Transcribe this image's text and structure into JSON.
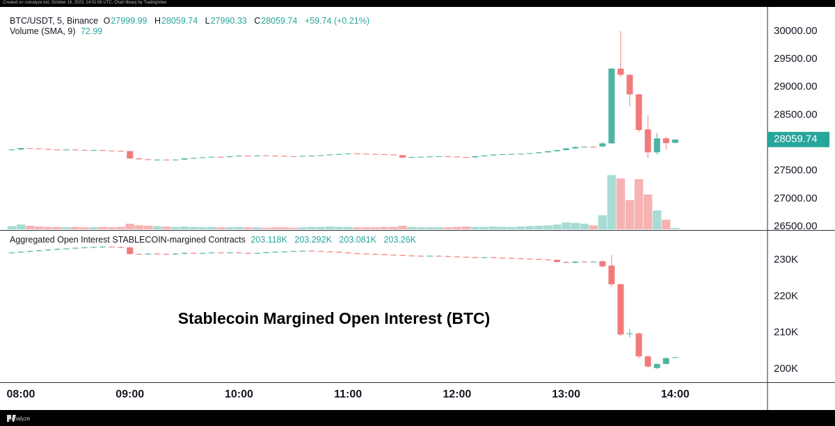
{
  "created_note": "Created on coinalyze.net, October 16, 2023, 14:01:06 UTC, Chart library by TradingView",
  "watermark": "coinalyze",
  "chart_data": [
    {
      "type": "candlestick",
      "title": "BTC/USDT, 5, Binance",
      "ohlc_letters": [
        "O",
        "H",
        "L",
        "C"
      ],
      "change": "+59.74 (+0.21%)",
      "up_color": "#4fb3a3",
      "down_color": "#f17b7b",
      "categories": [
        null,
        "08:00",
        null,
        null,
        null,
        null,
        null,
        null,
        null,
        null,
        null,
        null,
        null,
        "09:00",
        null,
        null,
        null,
        null,
        null,
        null,
        null,
        null,
        null,
        null,
        null,
        "10:00",
        null,
        null,
        null,
        null,
        null,
        null,
        null,
        null,
        null,
        null,
        null,
        "11:00",
        null,
        null,
        null,
        null,
        null,
        null,
        null,
        null,
        null,
        null,
        null,
        "12:00",
        null,
        null,
        null,
        null,
        null,
        null,
        null,
        null,
        null,
        null,
        null,
        "13:00",
        null,
        null,
        null,
        null,
        null,
        null,
        null,
        null,
        null,
        null,
        null,
        "14:00"
      ],
      "open": [
        27875,
        27880,
        27905,
        27900,
        27890,
        27880,
        27875,
        27880,
        27872,
        27868,
        27870,
        27862,
        27858,
        27852,
        27720,
        27705,
        27695,
        27700,
        27690,
        27700,
        27720,
        27730,
        27740,
        27750,
        27745,
        27760,
        27770,
        27765,
        27775,
        27770,
        27768,
        27760,
        27758,
        27765,
        27770,
        27778,
        27790,
        27800,
        27810,
        27805,
        27800,
        27795,
        27790,
        27780,
        27735,
        27745,
        27750,
        27755,
        27760,
        27755,
        27745,
        27740,
        27760,
        27775,
        27790,
        27795,
        27800,
        27805,
        27815,
        27830,
        27850,
        27870,
        27900,
        27925,
        27930,
        27935,
        27990,
        29330,
        29220,
        28870,
        28240,
        27830,
        28080,
        27999.99
      ],
      "high": [
        27890,
        27912,
        27910,
        27905,
        27895,
        27888,
        27886,
        27884,
        27878,
        27876,
        27875,
        27868,
        27865,
        27858,
        27728,
        27712,
        27708,
        27705,
        27706,
        27726,
        27738,
        27746,
        27756,
        27758,
        27766,
        27778,
        27776,
        27782,
        27780,
        27776,
        27772,
        27766,
        27770,
        27776,
        27784,
        27796,
        27806,
        27816,
        27815,
        27810,
        27806,
        27800,
        27796,
        27784,
        27752,
        27756,
        27760,
        27766,
        27765,
        27760,
        27750,
        27766,
        27780,
        27796,
        27802,
        27806,
        27812,
        27820,
        27836,
        27856,
        27878,
        27908,
        27935,
        27940,
        27942,
        28010,
        29345,
        30000,
        29230,
        28880,
        28500,
        28180,
        28110,
        28059.74
      ],
      "low": [
        27865,
        27875,
        27892,
        27884,
        27872,
        27868,
        27868,
        27865,
        27860,
        27862,
        27855,
        27850,
        27845,
        27712,
        27698,
        27688,
        27680,
        27682,
        27684,
        27695,
        27714,
        27724,
        27735,
        27738,
        27740,
        27754,
        27758,
        27760,
        27762,
        27760,
        27752,
        27750,
        27752,
        27760,
        27764,
        27772,
        27784,
        27795,
        27798,
        27794,
        27788,
        27784,
        27774,
        27728,
        27730,
        27740,
        27744,
        27750,
        27748,
        27738,
        27732,
        27735,
        27755,
        27770,
        27784,
        27790,
        27795,
        27800,
        27810,
        27825,
        27845,
        27865,
        27895,
        27915,
        27912,
        27925,
        27985,
        29180,
        28650,
        28190,
        27730,
        27790,
        27880,
        27990.33
      ],
      "close": [
        27880,
        27905,
        27900,
        27890,
        27880,
        27875,
        27880,
        27872,
        27868,
        27870,
        27862,
        27858,
        27852,
        27720,
        27705,
        27695,
        27700,
        27690,
        27700,
        27720,
        27730,
        27740,
        27750,
        27745,
        27760,
        27770,
        27765,
        27775,
        27770,
        27768,
        27760,
        27758,
        27765,
        27770,
        27778,
        27790,
        27800,
        27810,
        27805,
        27800,
        27795,
        27790,
        27780,
        27735,
        27745,
        27750,
        27755,
        27760,
        27755,
        27745,
        27740,
        27760,
        27775,
        27790,
        27795,
        27800,
        27805,
        27815,
        27830,
        27850,
        27870,
        27900,
        27925,
        27930,
        27920,
        27990,
        29330,
        29220,
        28870,
        28230,
        27830,
        28080,
        27995,
        28059.74
      ],
      "ylim": [
        26450,
        30336
      ],
      "yticks": [
        {
          "value": 26500,
          "label": "26500.00"
        },
        {
          "value": 27000,
          "label": "27000.00"
        },
        {
          "value": 27500,
          "label": "27500.00"
        },
        {
          "value": 28000,
          "label": "28000.00"
        },
        {
          "value": 28500,
          "label": "28500.00"
        },
        {
          "value": 29000,
          "label": "29000.00"
        },
        {
          "value": 29500,
          "label": "29500.00"
        },
        {
          "value": 30000,
          "label": "30000.00"
        }
      ],
      "volume": {
        "name": "Volume (SMA, 9)",
        "sma": 72.99,
        "up_color": "#a6dcd4",
        "down_color": "#f7b3b3",
        "ylim": [
          0,
          540
        ],
        "values": [
          8,
          12,
          9,
          7,
          6,
          6,
          5,
          6,
          5,
          5,
          6,
          5,
          6,
          14,
          10,
          9,
          8,
          7,
          6,
          7,
          6,
          5,
          6,
          5,
          5,
          6,
          5,
          5,
          4,
          5,
          5,
          4,
          5,
          6,
          6,
          7,
          6,
          6,
          5,
          5,
          5,
          6,
          6,
          9,
          6,
          5,
          5,
          5,
          5,
          6,
          7,
          6,
          6,
          7,
          6,
          6,
          7,
          8,
          9,
          10,
          12,
          17,
          16,
          14,
          10,
          35,
          135,
          127,
          73,
          125,
          87,
          47,
          24,
          3
        ]
      }
    },
    {
      "type": "candlestick",
      "title": "Aggregated Open Interest STABLECOIN-margined Contracts",
      "legend_value_labels": [
        "203.118K",
        "203.292K",
        "203.081K",
        "203.26K"
      ],
      "annotation": "Stablecoin Margined Open Interest (BTC)",
      "up_color": "#4fb3a3",
      "down_color": "#f17b7b",
      "open": [
        231900,
        232000,
        232200,
        232400,
        232600,
        232800,
        233000,
        233100,
        233300,
        233400,
        233500,
        233600,
        233500,
        233400,
        231600,
        231500,
        231700,
        231600,
        231500,
        231700,
        231900,
        231800,
        231900,
        232000,
        231900,
        232000,
        231900,
        231800,
        231900,
        232100,
        232200,
        232300,
        232400,
        232500,
        232400,
        232300,
        232200,
        232000,
        231800,
        231700,
        231600,
        231500,
        231400,
        231300,
        231200,
        231100,
        231000,
        231100,
        231000,
        230900,
        230800,
        230700,
        230600,
        230700,
        230600,
        230500,
        230400,
        230300,
        230200,
        230100,
        230000,
        229400,
        229200,
        229500,
        229400,
        229600,
        228400,
        223300,
        209600,
        209800,
        203500,
        200300,
        201400,
        203118
      ],
      "high": [
        232150,
        232350,
        232550,
        232750,
        232950,
        233150,
        233250,
        233450,
        233550,
        233650,
        233750,
        233750,
        233650,
        233550,
        231750,
        231850,
        231850,
        231750,
        231850,
        232050,
        232050,
        232050,
        232150,
        232150,
        232150,
        232150,
        232050,
        232050,
        232250,
        232350,
        232450,
        232550,
        232650,
        232650,
        232550,
        232450,
        232350,
        232150,
        231950,
        231850,
        231750,
        231650,
        231550,
        231450,
        231350,
        231250,
        231250,
        231250,
        231150,
        231050,
        230950,
        230850,
        230850,
        230850,
        230750,
        230650,
        230550,
        230450,
        230350,
        230250,
        230150,
        229550,
        229650,
        229650,
        229650,
        229800,
        231300,
        223500,
        211000,
        210000,
        203800,
        201600,
        203200,
        203292
      ],
      "low": [
        231750,
        231850,
        232050,
        232250,
        232450,
        232650,
        232850,
        232950,
        233150,
        233250,
        233350,
        233350,
        233250,
        231450,
        231350,
        231350,
        231450,
        231350,
        231350,
        231550,
        231650,
        231650,
        231750,
        231750,
        231750,
        231750,
        231650,
        231650,
        231750,
        231950,
        232050,
        232150,
        232250,
        232250,
        232150,
        232050,
        231850,
        231650,
        231550,
        231450,
        231350,
        231250,
        231150,
        231050,
        230950,
        230850,
        230850,
        230850,
        230750,
        230650,
        230550,
        230450,
        230450,
        230450,
        230350,
        230250,
        230150,
        230050,
        229950,
        229850,
        229250,
        229050,
        229050,
        229250,
        229250,
        228000,
        222600,
        209100,
        208700,
        202900,
        200300,
        200000,
        201300,
        203081
      ],
      "close": [
        232000,
        232200,
        232400,
        232600,
        232800,
        233000,
        233100,
        233300,
        233400,
        233500,
        233600,
        233500,
        233400,
        231600,
        231500,
        231700,
        231600,
        231500,
        231700,
        231900,
        231800,
        231900,
        232000,
        231900,
        232000,
        231900,
        231800,
        231900,
        232100,
        232200,
        232300,
        232400,
        232500,
        232400,
        232300,
        232200,
        232000,
        231800,
        231700,
        231600,
        231500,
        231400,
        231300,
        231200,
        231100,
        231000,
        231100,
        231000,
        230900,
        230800,
        230700,
        230600,
        230700,
        230600,
        230500,
        230400,
        230300,
        230200,
        230100,
        230000,
        229400,
        229200,
        229500,
        229400,
        229500,
        228200,
        223300,
        209500,
        209800,
        203500,
        200700,
        201400,
        203000,
        203260
      ],
      "ylim": [
        196400,
        237800
      ],
      "yticks": [
        {
          "value": 200000,
          "label": "200K"
        },
        {
          "value": 210000,
          "label": "210K"
        },
        {
          "value": 220000,
          "label": "220K"
        },
        {
          "value": 230000,
          "label": "230K"
        }
      ]
    }
  ]
}
